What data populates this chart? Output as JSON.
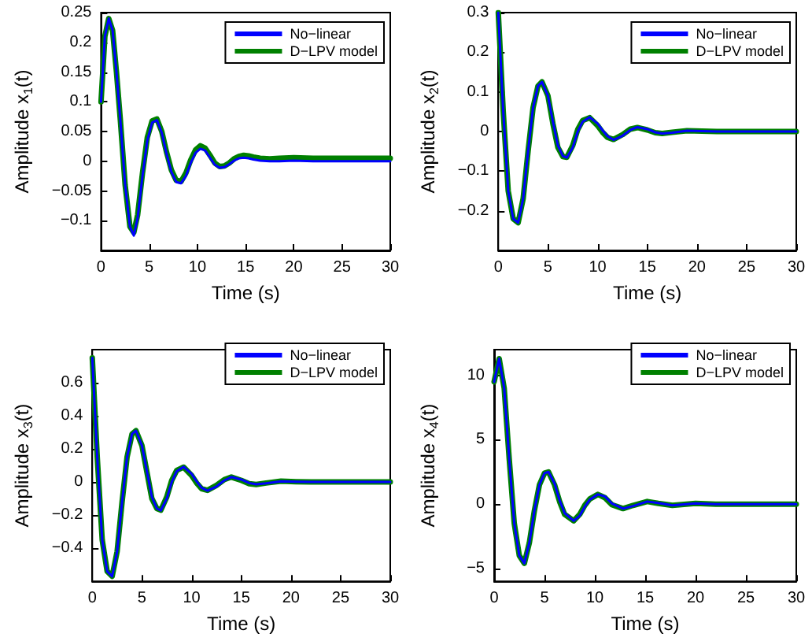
{
  "chart_data": [
    {
      "type": "line",
      "xlabel": "Time (s)",
      "ylabel": "Amplitude x$_{1}$(t)",
      "xlim": [
        0,
        30
      ],
      "xticks": [
        0,
        5,
        10,
        15,
        20,
        25,
        30
      ],
      "ylim": [
        -0.15,
        0.25
      ],
      "yticks": [
        -0.1,
        -0.05,
        0,
        0.05,
        0.1,
        0.15,
        0.2,
        0.25
      ],
      "grid": false,
      "legend": "top right",
      "marker": "none",
      "line_style": "solid",
      "x": [
        0,
        0.4,
        0.8,
        1.2,
        1.6,
        2,
        2.5,
        3,
        3.4,
        3.8,
        4.3,
        4.8,
        5.3,
        5.8,
        6.3,
        6.8,
        7.3,
        7.8,
        8.3,
        8.8,
        9.3,
        9.8,
        10.3,
        10.8,
        11.3,
        11.8,
        12.3,
        12.8,
        13.3,
        13.8,
        14.3,
        14.8,
        15.3,
        15.8,
        16.5,
        17.5,
        18.5,
        20,
        22,
        25,
        30
      ],
      "series": [
        {
          "name": "No−linear",
          "color": "#0000ff",
          "values": [
            0.1,
            0.21,
            0.24,
            0.22,
            0.15,
            0.07,
            -0.04,
            -0.11,
            -0.125,
            -0.095,
            -0.025,
            0.035,
            0.065,
            0.069,
            0.048,
            0.012,
            -0.018,
            -0.035,
            -0.037,
            -0.025,
            -0.003,
            0.014,
            0.021,
            0.018,
            0.006,
            -0.006,
            -0.011,
            -0.01,
            -0.005,
            0.001,
            0.005,
            0.006,
            0.005,
            0.003,
            0.001,
            0,
            0,
            0.001,
            0,
            0,
            0
          ]
        },
        {
          "name": "D−LPV model",
          "color": "#008000",
          "values": [
            0.1,
            0.21,
            0.24,
            0.22,
            0.15,
            0.07,
            -0.04,
            -0.11,
            -0.12,
            -0.09,
            -0.02,
            0.04,
            0.068,
            0.071,
            0.05,
            0.015,
            -0.015,
            -0.032,
            -0.034,
            -0.02,
            0.002,
            0.019,
            0.026,
            0.022,
            0.01,
            -0.003,
            -0.009,
            -0.008,
            -0.003,
            0.004,
            0.008,
            0.01,
            0.009,
            0.007,
            0.005,
            0.004,
            0.005,
            0.006,
            0.005,
            0.005,
            0.005
          ]
        }
      ]
    },
    {
      "type": "line",
      "xlabel": "Time (s)",
      "ylabel": "Amplitude x$_{2}$(t)",
      "xlim": [
        0,
        30
      ],
      "xticks": [
        0,
        5,
        10,
        15,
        20,
        25,
        30
      ],
      "ylim": [
        -0.3,
        0.3
      ],
      "yticks": [
        -0.2,
        -0.1,
        0,
        0.1,
        0.2,
        0.3
      ],
      "grid": false,
      "legend": "top right",
      "marker": "none",
      "line_style": "solid",
      "x": [
        0,
        0.5,
        1,
        1.5,
        2,
        2.5,
        3,
        3.5,
        4,
        4.4,
        5,
        5.5,
        6,
        6.5,
        6.9,
        7.5,
        8,
        8.5,
        9.2,
        10,
        10.5,
        11,
        11.6,
        12.5,
        13.3,
        14,
        15,
        15.8,
        16.5,
        17.5,
        19,
        20.5,
        22,
        25,
        30
      ],
      "series": [
        {
          "name": "No−linear",
          "color": "#0000ff",
          "values": [
            0.3,
            0.05,
            -0.15,
            -0.22,
            -0.23,
            -0.17,
            -0.05,
            0.06,
            0.115,
            0.125,
            0.09,
            0.025,
            -0.035,
            -0.062,
            -0.066,
            -0.04,
            0,
            0.025,
            0.036,
            0.02,
            0.003,
            -0.012,
            -0.021,
            -0.011,
            0.004,
            0.011,
            0.006,
            -0.002,
            -0.005,
            -0.003,
            0.002,
            0.001,
            0,
            0,
            0
          ]
        },
        {
          "name": "D−LPV model",
          "color": "#008000",
          "values": [
            0.3,
            0.05,
            -0.15,
            -0.22,
            -0.23,
            -0.17,
            -0.05,
            0.06,
            0.115,
            0.125,
            0.09,
            0.02,
            -0.04,
            -0.063,
            -0.065,
            -0.035,
            0.005,
            0.028,
            0.035,
            0.015,
            -0.002,
            -0.015,
            -0.02,
            -0.008,
            0.006,
            0.01,
            0.004,
            -0.003,
            -0.005,
            -0.002,
            0.002,
            0.001,
            0,
            0,
            0
          ]
        }
      ]
    },
    {
      "type": "line",
      "xlabel": "Time (s)",
      "ylabel": "Amplitude x$_{3}$(t)",
      "xlim": [
        0,
        30
      ],
      "xticks": [
        0,
        5,
        10,
        15,
        20,
        25,
        30
      ],
      "ylim": [
        -0.6,
        0.8
      ],
      "yticks": [
        -0.4,
        -0.2,
        0,
        0.2,
        0.4,
        0.6
      ],
      "grid": false,
      "legend": "top right",
      "marker": "none",
      "line_style": "solid",
      "x": [
        0,
        0.5,
        1,
        1.5,
        2,
        2.5,
        3,
        3.5,
        4,
        4.4,
        5,
        5.5,
        6,
        6.5,
        6.9,
        7.5,
        8,
        8.5,
        9.2,
        10,
        10.5,
        11,
        11.6,
        12.5,
        13.3,
        14,
        15,
        15.8,
        16.5,
        17.5,
        19,
        20.5,
        22,
        25,
        30
      ],
      "series": [
        {
          "name": "No−linear",
          "color": "#0000ff",
          "values": [
            0.75,
            0.15,
            -0.35,
            -0.54,
            -0.57,
            -0.42,
            -0.12,
            0.15,
            0.29,
            0.31,
            0.22,
            0.065,
            -0.09,
            -0.16,
            -0.172,
            -0.1,
            0,
            0.065,
            0.092,
            0.05,
            0.005,
            -0.035,
            -0.052,
            -0.027,
            0.01,
            0.03,
            0.015,
            -0.006,
            -0.014,
            -0.008,
            0.004,
            0.002,
            0,
            0,
            0
          ]
        },
        {
          "name": "D−LPV model",
          "color": "#008000",
          "values": [
            0.75,
            0.15,
            -0.35,
            -0.54,
            -0.57,
            -0.42,
            -0.12,
            0.15,
            0.29,
            0.31,
            0.22,
            0.06,
            -0.1,
            -0.16,
            -0.17,
            -0.09,
            0.01,
            0.07,
            0.09,
            0.04,
            -0.005,
            -0.04,
            -0.05,
            -0.02,
            0.015,
            0.03,
            0.01,
            -0.01,
            -0.015,
            -0.006,
            0.005,
            0.002,
            0,
            0,
            0
          ]
        }
      ]
    },
    {
      "type": "line",
      "xlabel": "Time (s)",
      "ylabel": "Amplitude x$_{4}$(t)",
      "xlim": [
        0,
        30
      ],
      "xticks": [
        0,
        5,
        10,
        15,
        20,
        25,
        30
      ],
      "ylim": [
        -6,
        12
      ],
      "yticks": [
        -5,
        0,
        5,
        10
      ],
      "grid": false,
      "legend": "top right",
      "marker": "none",
      "line_style": "solid",
      "x": [
        0,
        0.5,
        1,
        1.5,
        2,
        2.5,
        3,
        3.5,
        4,
        4.5,
        5,
        5.4,
        6,
        6.5,
        7,
        7.9,
        8.5,
        9,
        9.5,
        10.3,
        11,
        11.7,
        12.8,
        13.8,
        15.2,
        16.3,
        17.7,
        20,
        22,
        25,
        30
      ],
      "series": [
        {
          "name": "No−linear",
          "color": "#0000ff",
          "values": [
            9.5,
            11.3,
            9,
            3.5,
            -1.5,
            -4,
            -4.6,
            -3,
            -0.5,
            1.5,
            2.4,
            2.5,
            1.6,
            0.3,
            -0.7,
            -1.3,
            -0.9,
            -0.2,
            0.35,
            0.75,
            0.6,
            0.05,
            -0.35,
            -0.15,
            0.2,
            0.08,
            -0.1,
            0.05,
            0,
            0,
            0
          ]
        },
        {
          "name": "D−LPV model",
          "color": "#008000",
          "values": [
            9.5,
            11.3,
            9,
            3.5,
            -1.5,
            -4,
            -4.6,
            -3,
            -0.5,
            1.5,
            2.4,
            2.5,
            1.5,
            0.2,
            -0.8,
            -1.3,
            -0.8,
            -0.1,
            0.4,
            0.75,
            0.5,
            -0.05,
            -0.35,
            -0.1,
            0.2,
            0.05,
            -0.1,
            0.05,
            0,
            0,
            0
          ]
        }
      ]
    }
  ]
}
